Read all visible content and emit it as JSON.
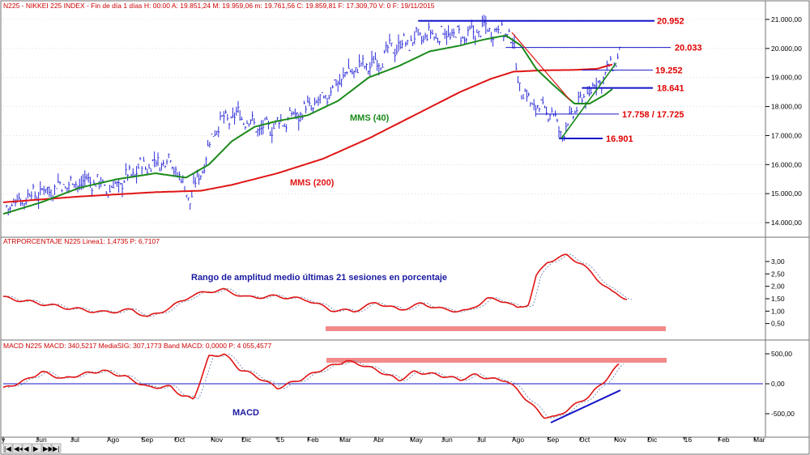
{
  "colors": {
    "price": "#2a2ad8",
    "green": "#1a8a1a",
    "red": "#e01414",
    "navy": "#1a1aa0",
    "lvl_line": "#1414c8",
    "lvl_text": "#e00000",
    "band": "#f28a8a",
    "grid": "#c8c8c8",
    "frame": "#707070",
    "sig": "#7a94b8",
    "header_red": "#cc0000",
    "header_blue": "#0000b0"
  },
  "price_panel": {
    "header": "N225 - NIKKEI 225 INDEX - Fin de día 1 días H: 00:00 A: 19.851,24 M: 19.959,06 m: 19.761,56 C: 19.859,81 F: 17.309,70 V: 0 F: 19/11/2015",
    "y_ticks": [
      "21.000,00",
      "20.000,00",
      "19.000,00",
      "18.000,00",
      "17.000,00",
      "16.000,00",
      "15.000,00",
      "14.000,00"
    ],
    "levels": [
      {
        "label": "20.952",
        "value": 20952,
        "from": 0.545
      },
      {
        "label": "20.033",
        "value": 20033,
        "from": 0.66
      },
      {
        "label": "19.252",
        "value": 19252,
        "from": 0.76
      },
      {
        "label": "18.641",
        "value": 18641,
        "from": 0.76
      },
      {
        "label": "17.758 / 17.725",
        "value": 17740,
        "from": 0.7
      },
      {
        "label": "16.901",
        "value": 16901,
        "from": 0.73
      }
    ],
    "mms40_label": "MMS (40)",
    "mms200_label": "MMS (200)"
  },
  "atr_panel": {
    "header": "ATRPORCENTAJE  N225 Linea1: 1,4735  P: 6,7107",
    "y_ticks": [
      "3,00",
      "2,50",
      "2,00",
      "1,50",
      "1,00",
      "0,50"
    ],
    "annotation": "Rango de amplitud medio últimas 21 sesiones en porcentaje"
  },
  "macd_panel": {
    "header": "MACD   N225 MACD: 340,5217  MediaSIG: 307,1773  Band MACD: 0,0000  P: 4 055,4577",
    "y_ticks": [
      "500,00",
      "0,00",
      "-500,00"
    ],
    "annotation": "MACD"
  },
  "x_axis": {
    "labels": [
      "y",
      "Jun",
      "Jul",
      "Ago",
      "Sep",
      "Oct",
      "Nov",
      "Dic",
      "'15",
      "Feb",
      "Mar",
      "Abr",
      "May",
      "Jun",
      "Jul",
      "Ago",
      "Sep",
      "Oct",
      "Nov",
      "Dic",
      "'16",
      "Feb",
      "Mar"
    ]
  },
  "nav_buttons": [
    "|◀",
    "◀◀",
    "◀",
    "▶",
    "▶▶",
    "▶|"
  ],
  "chart_data": {
    "type": "line",
    "title": "N225 - NIKKEI 225 INDEX",
    "ylim": [
      13800,
      21300
    ],
    "series": [
      {
        "name": "N225",
        "points": [
          [
            0,
            14500
          ],
          [
            0.03,
            14900
          ],
          [
            0.08,
            15300
          ],
          [
            0.12,
            15450
          ],
          [
            0.14,
            15100
          ],
          [
            0.18,
            15900
          ],
          [
            0.22,
            16200
          ],
          [
            0.245,
            14800
          ],
          [
            0.26,
            15800
          ],
          [
            0.28,
            17400
          ],
          [
            0.31,
            17700
          ],
          [
            0.34,
            17200
          ],
          [
            0.37,
            17500
          ],
          [
            0.39,
            17800
          ],
          [
            0.42,
            18200
          ],
          [
            0.44,
            18900
          ],
          [
            0.46,
            19300
          ],
          [
            0.49,
            19500
          ],
          [
            0.51,
            20000
          ],
          [
            0.55,
            20400
          ],
          [
            0.58,
            20500
          ],
          [
            0.61,
            20400
          ],
          [
            0.63,
            20700
          ],
          [
            0.66,
            20600
          ],
          [
            0.67,
            20100
          ],
          [
            0.68,
            18500
          ],
          [
            0.7,
            18000
          ],
          [
            0.72,
            17800
          ],
          [
            0.735,
            17000
          ],
          [
            0.75,
            17900
          ],
          [
            0.78,
            18800
          ],
          [
            0.8,
            19400
          ],
          [
            0.81,
            19860
          ]
        ]
      },
      {
        "name": "MMS (40)",
        "points": [
          [
            0,
            14300
          ],
          [
            0.05,
            14700
          ],
          [
            0.1,
            15200
          ],
          [
            0.15,
            15500
          ],
          [
            0.2,
            15700
          ],
          [
            0.24,
            15550
          ],
          [
            0.27,
            16000
          ],
          [
            0.3,
            16800
          ],
          [
            0.33,
            17300
          ],
          [
            0.36,
            17500
          ],
          [
            0.4,
            17700
          ],
          [
            0.44,
            18200
          ],
          [
            0.48,
            19000
          ],
          [
            0.52,
            19400
          ],
          [
            0.56,
            19900
          ],
          [
            0.6,
            20100
          ],
          [
            0.63,
            20300
          ],
          [
            0.66,
            20450
          ],
          [
            0.68,
            20100
          ],
          [
            0.7,
            19300
          ],
          [
            0.72,
            18800
          ],
          [
            0.75,
            18100
          ],
          [
            0.77,
            18100
          ],
          [
            0.79,
            18400
          ],
          [
            0.8,
            18600
          ]
        ]
      },
      {
        "name": "MMS (200)",
        "points": [
          [
            0,
            14700
          ],
          [
            0.1,
            14900
          ],
          [
            0.2,
            15050
          ],
          [
            0.26,
            15100
          ],
          [
            0.3,
            15300
          ],
          [
            0.36,
            15700
          ],
          [
            0.42,
            16200
          ],
          [
            0.48,
            16900
          ],
          [
            0.54,
            17700
          ],
          [
            0.6,
            18500
          ],
          [
            0.64,
            18950
          ],
          [
            0.67,
            19200
          ],
          [
            0.71,
            19250
          ],
          [
            0.75,
            19260
          ],
          [
            0.78,
            19300
          ],
          [
            0.8,
            19450
          ]
        ]
      }
    ]
  }
}
